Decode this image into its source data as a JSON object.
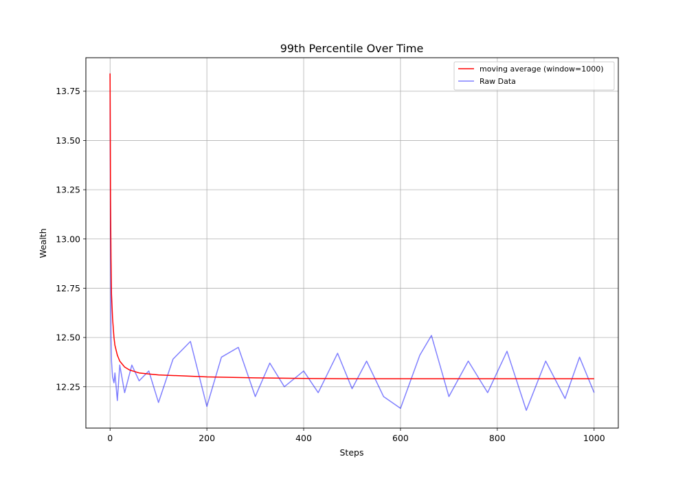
{
  "chart_data": {
    "type": "line",
    "title": "99th Percentile Over Time",
    "xlabel": "Steps",
    "ylabel": "Wealth",
    "xlim": [
      -50,
      1050
    ],
    "ylim": [
      12.04,
      13.92
    ],
    "x_ticks": [
      0,
      200,
      400,
      600,
      800,
      1000
    ],
    "y_ticks": [
      12.25,
      12.5,
      12.75,
      13.0,
      13.25,
      13.5,
      13.75
    ],
    "x_tick_labels": [
      "0",
      "200",
      "400",
      "600",
      "800",
      "1000"
    ],
    "y_tick_labels": [
      "12.25",
      "12.50",
      "12.75",
      "13.00",
      "13.25",
      "13.50",
      "13.75"
    ],
    "grid": true,
    "legend_position": "top-right",
    "series": [
      {
        "name": "moving average (window=1000)",
        "color": "#ff0000",
        "x": [
          0,
          1,
          2,
          3,
          5,
          8,
          10,
          15,
          20,
          30,
          40,
          60,
          80,
          100,
          150,
          200,
          300,
          400,
          500,
          600,
          700,
          800,
          900,
          1000
        ],
        "y": [
          13.84,
          13.2,
          12.9,
          12.72,
          12.6,
          12.5,
          12.46,
          12.41,
          12.38,
          12.35,
          12.335,
          12.32,
          12.315,
          12.31,
          12.305,
          12.3,
          12.295,
          12.292,
          12.29,
          12.29,
          12.29,
          12.29,
          12.29,
          12.29
        ]
      },
      {
        "name": "Raw Data",
        "color": "#0000ff",
        "opacity": 0.5,
        "x": [
          0,
          1,
          2,
          3,
          5,
          8,
          10,
          15,
          20,
          30,
          45,
          60,
          80,
          100,
          130,
          166,
          200,
          230,
          265,
          300,
          330,
          360,
          400,
          430,
          470,
          500,
          530,
          565,
          600,
          640,
          664,
          700,
          740,
          780,
          820,
          860,
          900,
          940,
          970,
          1000
        ],
        "y": [
          13.84,
          12.9,
          12.5,
          12.38,
          12.3,
          12.27,
          12.32,
          12.18,
          12.36,
          12.22,
          12.36,
          12.28,
          12.33,
          12.17,
          12.39,
          12.48,
          12.15,
          12.4,
          12.45,
          12.2,
          12.37,
          12.25,
          12.33,
          12.22,
          12.42,
          12.24,
          12.38,
          12.2,
          12.14,
          12.41,
          12.51,
          12.2,
          12.38,
          12.22,
          12.43,
          12.13,
          12.38,
          12.19,
          12.4,
          12.22
        ]
      }
    ]
  }
}
